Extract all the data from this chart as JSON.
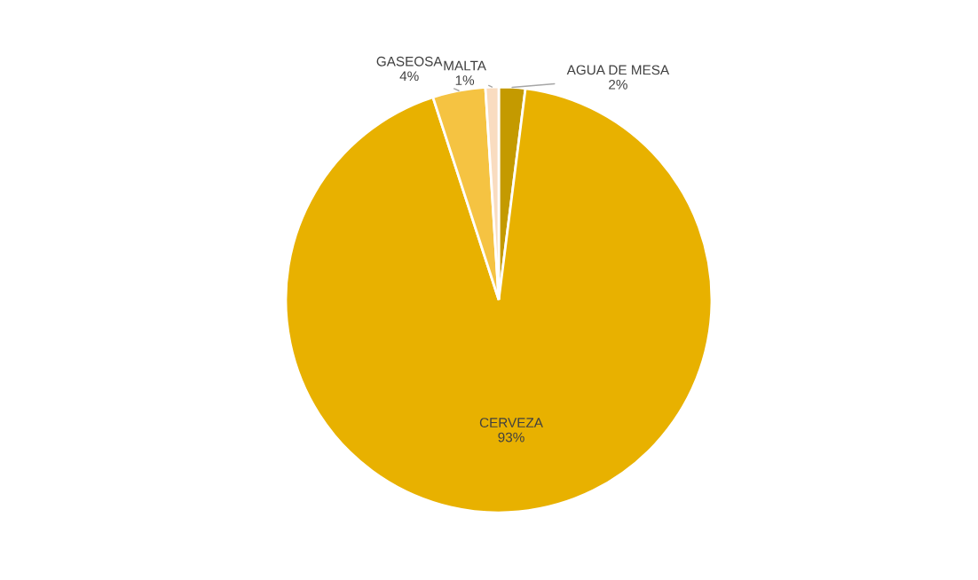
{
  "chart_data": {
    "type": "pie",
    "categories": [
      "AGUA DE MESA",
      "CERVEZA",
      "GASEOSA",
      "MALTA"
    ],
    "values": [
      2,
      93,
      4,
      1
    ],
    "value_labels": [
      "2%",
      "93%",
      "4%",
      "1%"
    ],
    "colors": [
      "#c49a00",
      "#e8b100",
      "#f5c342",
      "#f9dcc0"
    ],
    "legend": false
  }
}
